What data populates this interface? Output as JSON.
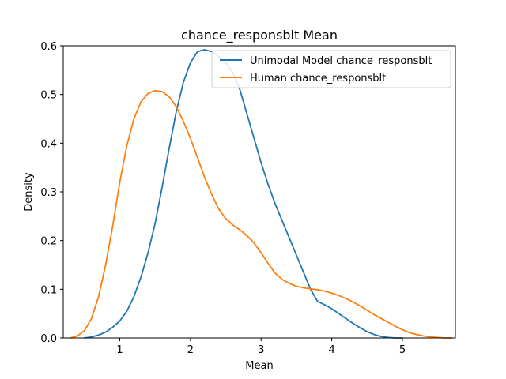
{
  "chart_data": {
    "type": "line",
    "title": "chance_responsblt Mean",
    "xlabel": "Mean",
    "ylabel": "Density",
    "xlim": [
      0.2,
      5.75
    ],
    "ylim": [
      0,
      0.6
    ],
    "xticks": [
      1,
      2,
      3,
      4,
      5
    ],
    "yticks": [
      0.0,
      0.1,
      0.2,
      0.3,
      0.4,
      0.5,
      0.6
    ],
    "grid": false,
    "legend_position": "top-right",
    "series": [
      {
        "name": "Unimodal Model chance_responsblt",
        "color": "#1f77b4",
        "x": [
          0.5,
          0.6,
          0.7,
          0.8,
          0.9,
          1.0,
          1.1,
          1.2,
          1.3,
          1.4,
          1.5,
          1.6,
          1.7,
          1.8,
          1.9,
          2.0,
          2.1,
          2.2,
          2.3,
          2.4,
          2.5,
          2.6,
          2.7,
          2.8,
          2.9,
          3.0,
          3.1,
          3.2,
          3.3,
          3.4,
          3.5,
          3.6,
          3.7,
          3.8,
          3.9,
          4.0,
          4.1,
          4.2,
          4.3,
          4.4,
          4.5,
          4.6,
          4.7,
          4.8,
          4.9,
          5.0
        ],
        "y": [
          0.0,
          0.002,
          0.006,
          0.012,
          0.022,
          0.035,
          0.055,
          0.085,
          0.125,
          0.175,
          0.235,
          0.31,
          0.39,
          0.465,
          0.525,
          0.565,
          0.588,
          0.592,
          0.588,
          0.578,
          0.565,
          0.545,
          0.51,
          0.46,
          0.41,
          0.36,
          0.315,
          0.275,
          0.24,
          0.205,
          0.17,
          0.135,
          0.1,
          0.075,
          0.068,
          0.06,
          0.05,
          0.04,
          0.03,
          0.021,
          0.013,
          0.007,
          0.003,
          0.001,
          0.0,
          0.0
        ]
      },
      {
        "name": "Human chance_responsblt",
        "color": "#ff7f0e",
        "x": [
          0.3,
          0.4,
          0.5,
          0.6,
          0.7,
          0.8,
          0.9,
          1.0,
          1.1,
          1.2,
          1.3,
          1.4,
          1.5,
          1.6,
          1.7,
          1.8,
          1.9,
          2.0,
          2.1,
          2.2,
          2.3,
          2.4,
          2.5,
          2.6,
          2.7,
          2.8,
          2.9,
          3.0,
          3.1,
          3.2,
          3.3,
          3.4,
          3.5,
          3.6,
          3.7,
          3.8,
          3.9,
          4.0,
          4.1,
          4.2,
          4.3,
          4.4,
          4.5,
          4.6,
          4.7,
          4.8,
          4.9,
          5.0,
          5.1,
          5.2,
          5.3,
          5.4,
          5.5,
          5.6,
          5.7
        ],
        "y": [
          0.0,
          0.004,
          0.015,
          0.04,
          0.085,
          0.15,
          0.23,
          0.32,
          0.395,
          0.45,
          0.485,
          0.502,
          0.508,
          0.506,
          0.495,
          0.475,
          0.445,
          0.41,
          0.37,
          0.33,
          0.295,
          0.265,
          0.245,
          0.232,
          0.222,
          0.21,
          0.195,
          0.175,
          0.153,
          0.133,
          0.12,
          0.112,
          0.106,
          0.103,
          0.101,
          0.099,
          0.096,
          0.092,
          0.087,
          0.081,
          0.074,
          0.066,
          0.057,
          0.048,
          0.04,
          0.032,
          0.024,
          0.017,
          0.011,
          0.007,
          0.004,
          0.002,
          0.001,
          0.0,
          0.0
        ]
      }
    ]
  }
}
